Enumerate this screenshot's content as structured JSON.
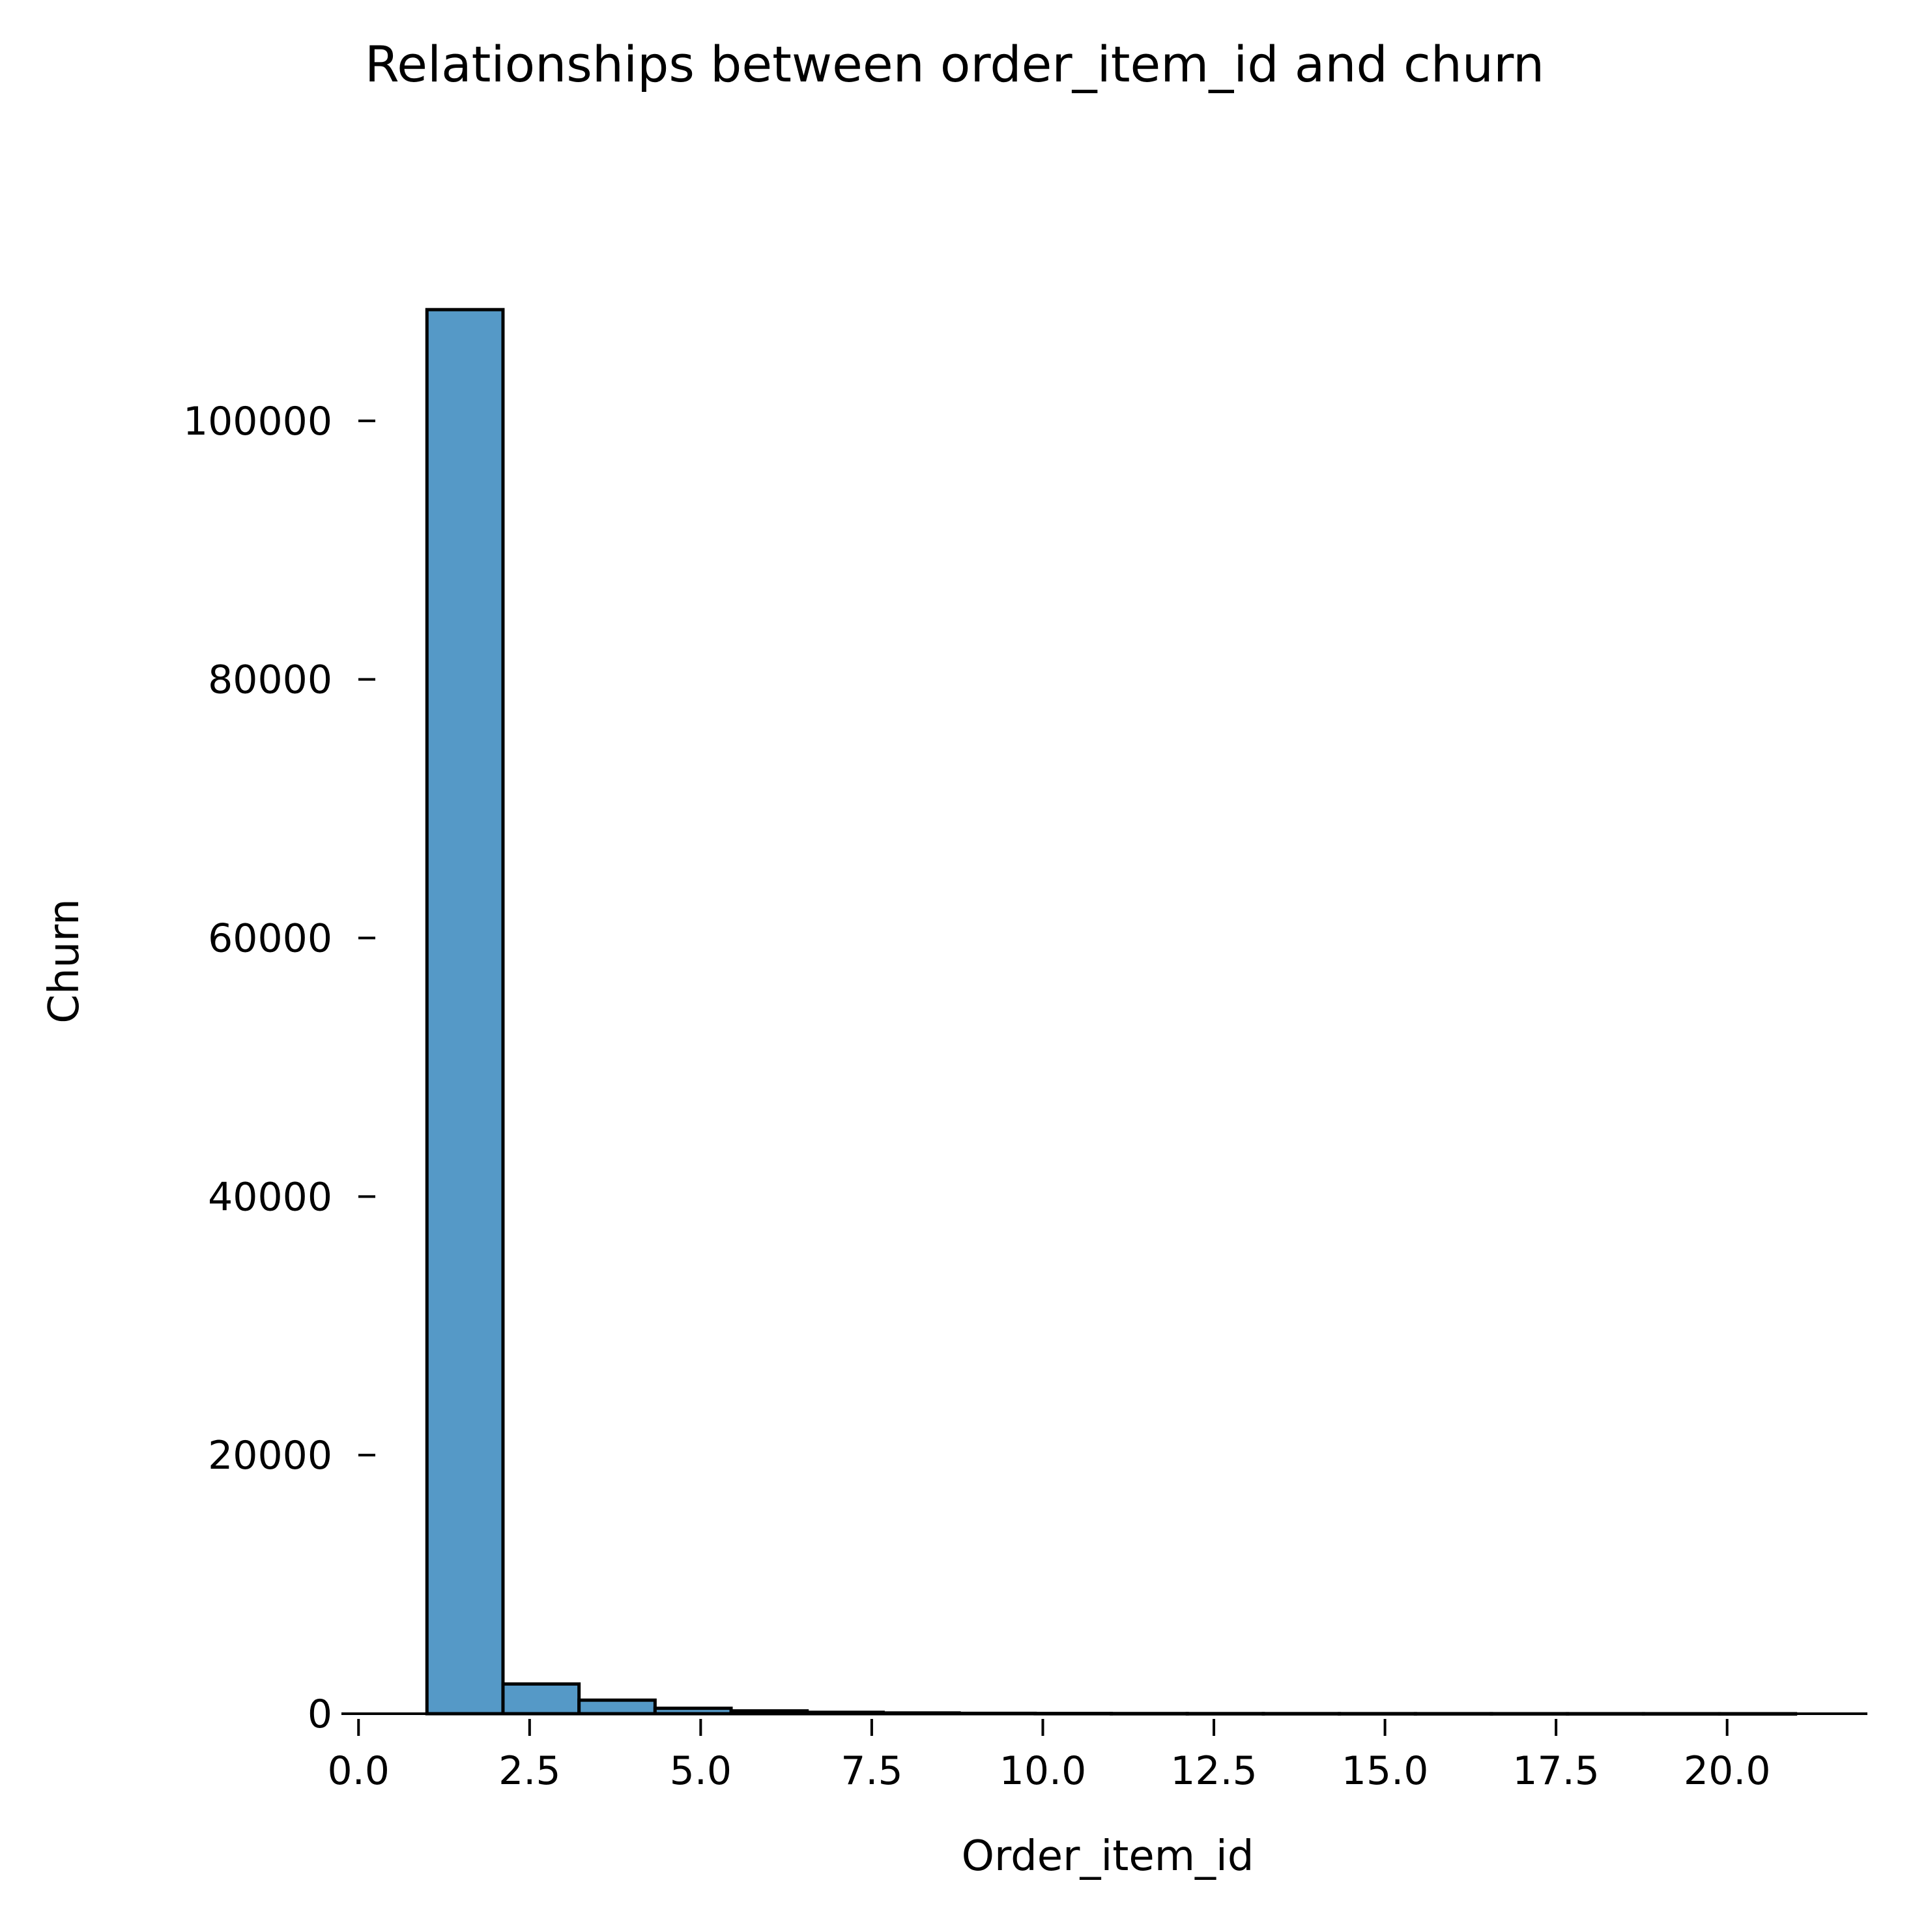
{
  "chart_data": {
    "type": "bar",
    "title": "Relationships between order_item_id and churn",
    "xlabel": "Order_item_id",
    "ylabel": "Churn",
    "xlim": [
      -0.25,
      22.05
    ],
    "ylim": [
      0,
      113800
    ],
    "x_ticks": [
      0.0,
      2.5,
      5.0,
      7.5,
      10.0,
      12.5,
      15.0,
      17.5,
      20.0
    ],
    "x_tick_labels": [
      "0.0",
      "2.5",
      "5.0",
      "7.5",
      "10.0",
      "12.5",
      "15.0",
      "17.5",
      "20.0"
    ],
    "y_ticks": [
      0,
      20000,
      40000,
      60000,
      80000,
      100000
    ],
    "y_tick_labels": [
      "0",
      "20000",
      "40000",
      "60000",
      "80000",
      "100000"
    ],
    "grid": false,
    "bin_edges": [
      1.0,
      2.1111,
      3.2222,
      4.3333,
      5.4444,
      6.5556,
      7.6667,
      8.7778,
      9.8889,
      11.0,
      12.1111,
      13.2222,
      14.3333,
      15.4444,
      16.5556,
      17.6667,
      18.7778,
      19.8889,
      21.0
    ],
    "values": [
      108600,
      2300,
      1050,
      420,
      220,
      110,
      60,
      30,
      20,
      15,
      12,
      10,
      8,
      6,
      5,
      4,
      3,
      2
    ],
    "bar_color": "#5599c7",
    "edge_color": "#000000"
  }
}
